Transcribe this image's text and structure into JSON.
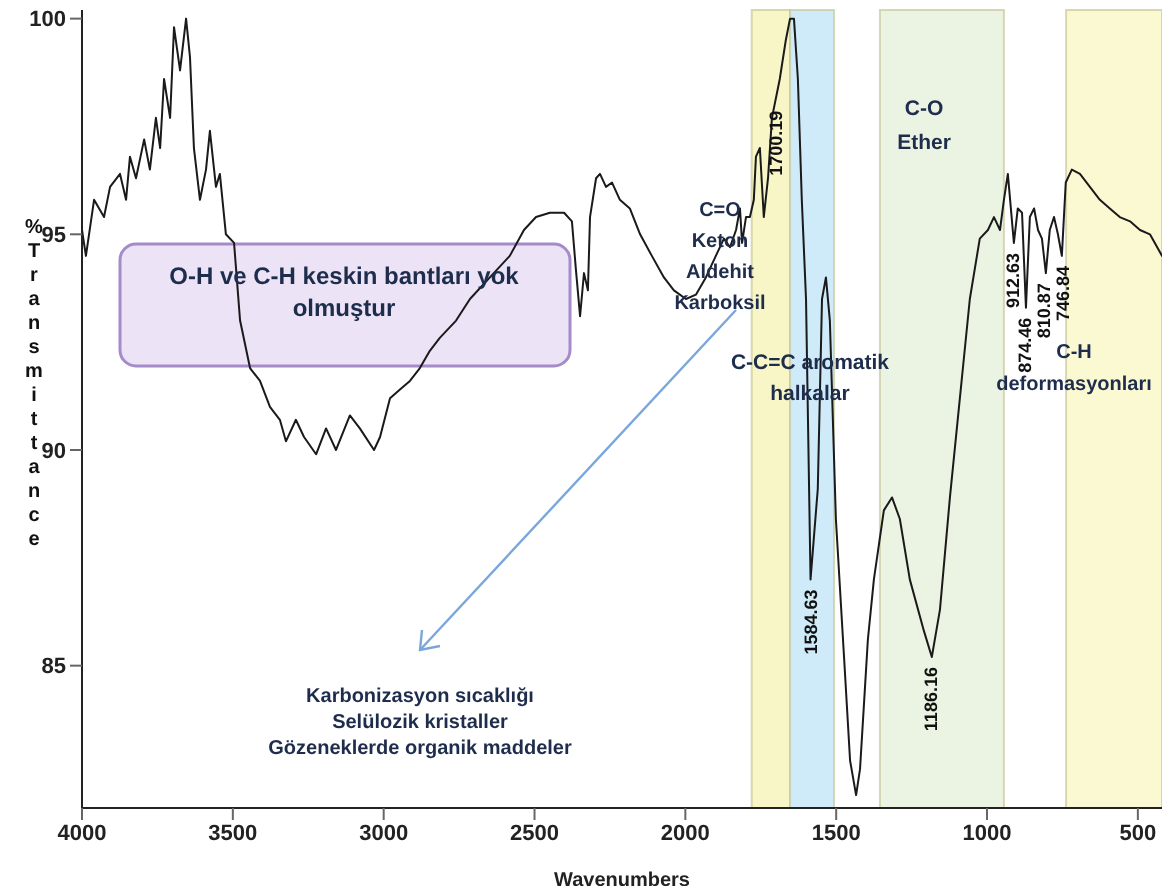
{
  "chart_data": {
    "type": "line",
    "xlabel": "Wavenumbers",
    "ylabel": "%Transmittance",
    "xlim": [
      4000,
      420
    ],
    "xticks": [
      4000,
      3500,
      3000,
      2500,
      2000,
      1500,
      1000,
      500
    ],
    "ylim": [
      81.7,
      100.2
    ],
    "yticks": [
      85,
      90,
      95,
      100
    ],
    "color": "#1a1a1a",
    "x": [
      4000,
      3987,
      3960,
      3927,
      3907,
      3874,
      3854,
      3841,
      3821,
      3794,
      3775,
      3755,
      3741,
      3728,
      3708,
      3695,
      3675,
      3655,
      3642,
      3629,
      3609,
      3589,
      3576,
      3556,
      3543,
      3523,
      3496,
      3476,
      3443,
      3410,
      3377,
      3344,
      3324,
      3291,
      3264,
      3224,
      3191,
      3158,
      3112,
      3079,
      3032,
      3012,
      2979,
      2946,
      2913,
      2880,
      2847,
      2814,
      2760,
      2714,
      2648,
      2582,
      2535,
      2495,
      2449,
      2402,
      2376,
      2363,
      2349,
      2336,
      2323,
      2316,
      2296,
      2283,
      2263,
      2243,
      2217,
      2184,
      2150,
      2111,
      2071,
      2038,
      1998,
      1965,
      1932,
      1899,
      1872,
      1852,
      1832,
      1819,
      1812,
      1799,
      1786,
      1773,
      1766,
      1753,
      1740,
      1726,
      1713,
      1687,
      1667,
      1653,
      1640,
      1627,
      1614,
      1600,
      1585,
      1561,
      1547,
      1534,
      1521,
      1501,
      1474,
      1454,
      1434,
      1421,
      1395,
      1375,
      1342,
      1315,
      1289,
      1256,
      1209,
      1183,
      1156,
      1123,
      1090,
      1057,
      1024,
      997,
      977,
      957,
      944,
      931,
      911,
      898,
      884,
      871,
      858,
      844,
      831,
      818,
      805,
      792,
      778,
      765,
      752,
      739,
      719,
      692,
      659,
      626,
      593,
      560,
      526,
      493,
      460,
      420
    ],
    "values": [
      95.1,
      94.5,
      95.8,
      95.4,
      96.1,
      96.4,
      95.8,
      96.8,
      96.3,
      97.2,
      96.5,
      97.7,
      97.0,
      98.6,
      97.7,
      99.8,
      98.8,
      100.0,
      99.1,
      97.0,
      95.8,
      96.5,
      97.4,
      96.1,
      96.4,
      95.0,
      94.8,
      93.0,
      91.9,
      91.6,
      91.0,
      90.7,
      90.2,
      90.7,
      90.3,
      89.9,
      90.5,
      90.0,
      90.8,
      90.5,
      90.0,
      90.3,
      91.2,
      91.4,
      91.6,
      91.9,
      92.3,
      92.6,
      93.0,
      93.5,
      94.0,
      94.5,
      95.1,
      95.4,
      95.5,
      95.5,
      95.3,
      94.2,
      93.1,
      94.1,
      93.7,
      95.4,
      96.3,
      96.4,
      96.1,
      96.2,
      95.8,
      95.6,
      95.0,
      94.5,
      94.0,
      93.7,
      93.5,
      93.6,
      94.0,
      94.5,
      94.9,
      94.7,
      95.1,
      95.6,
      94.8,
      95.4,
      95.4,
      95.8,
      96.8,
      97.0,
      95.4,
      96.3,
      97.7,
      98.6,
      99.5,
      100.0,
      100.0,
      98.6,
      95.8,
      93.5,
      87.0,
      89.1,
      93.5,
      94.0,
      93.0,
      88.4,
      85.2,
      82.8,
      82.0,
      82.6,
      85.6,
      87.0,
      88.6,
      88.9,
      88.4,
      87.0,
      85.8,
      85.2,
      86.3,
      88.9,
      91.2,
      93.5,
      94.9,
      95.1,
      95.4,
      95.1,
      95.8,
      96.4,
      94.8,
      95.6,
      95.5,
      93.3,
      95.4,
      95.6,
      95.1,
      94.9,
      94.1,
      95.1,
      95.4,
      95.0,
      94.5,
      96.2,
      96.5,
      96.4,
      96.1,
      95.8,
      95.6,
      95.4,
      95.3,
      95.1,
      95.0,
      94.5
    ],
    "bands": [
      {
        "axis": "x",
        "from": 1780,
        "to": 1653,
        "color": "#f8f6c6"
      },
      {
        "axis": "x",
        "from": 1653,
        "to": 1507,
        "color": "#cfeaf8"
      },
      {
        "axis": "x",
        "from": 1355,
        "to": 944,
        "color": "#ebf3e2"
      },
      {
        "axis": "x",
        "from": 738,
        "to": 420,
        "color": "#fbf9d2"
      }
    ],
    "annotations": [
      "O-H ve C-H keskin bantları yok olmuştur",
      "Karbonizasyon sıcaklığı\nSelülozik kristaller\nGözeneklerde organik maddeler",
      "C=O\nKeton\nAldehit\nKarboksil",
      "C-C=C aromatik\nhalkalar",
      "C-O\nEther",
      "C-H\ndeformasyonları",
      {
        "text": "1700.19",
        "x": 1700.19,
        "y": 98.1
      },
      {
        "text": "1584.63",
        "x": 1584.63,
        "y": 87.0
      },
      {
        "text": "1186.16",
        "x": 1186.16,
        "y": 85.2
      },
      {
        "text": "912.63",
        "x": 912.63,
        "y": 94.8
      },
      {
        "text": "874.46",
        "x": 874.46,
        "y": 93.3
      },
      {
        "text": "810.87",
        "x": 810.87,
        "y": 94.1
      },
      {
        "text": "746.84",
        "x": 746.84,
        "y": 94.5
      }
    ]
  }
}
